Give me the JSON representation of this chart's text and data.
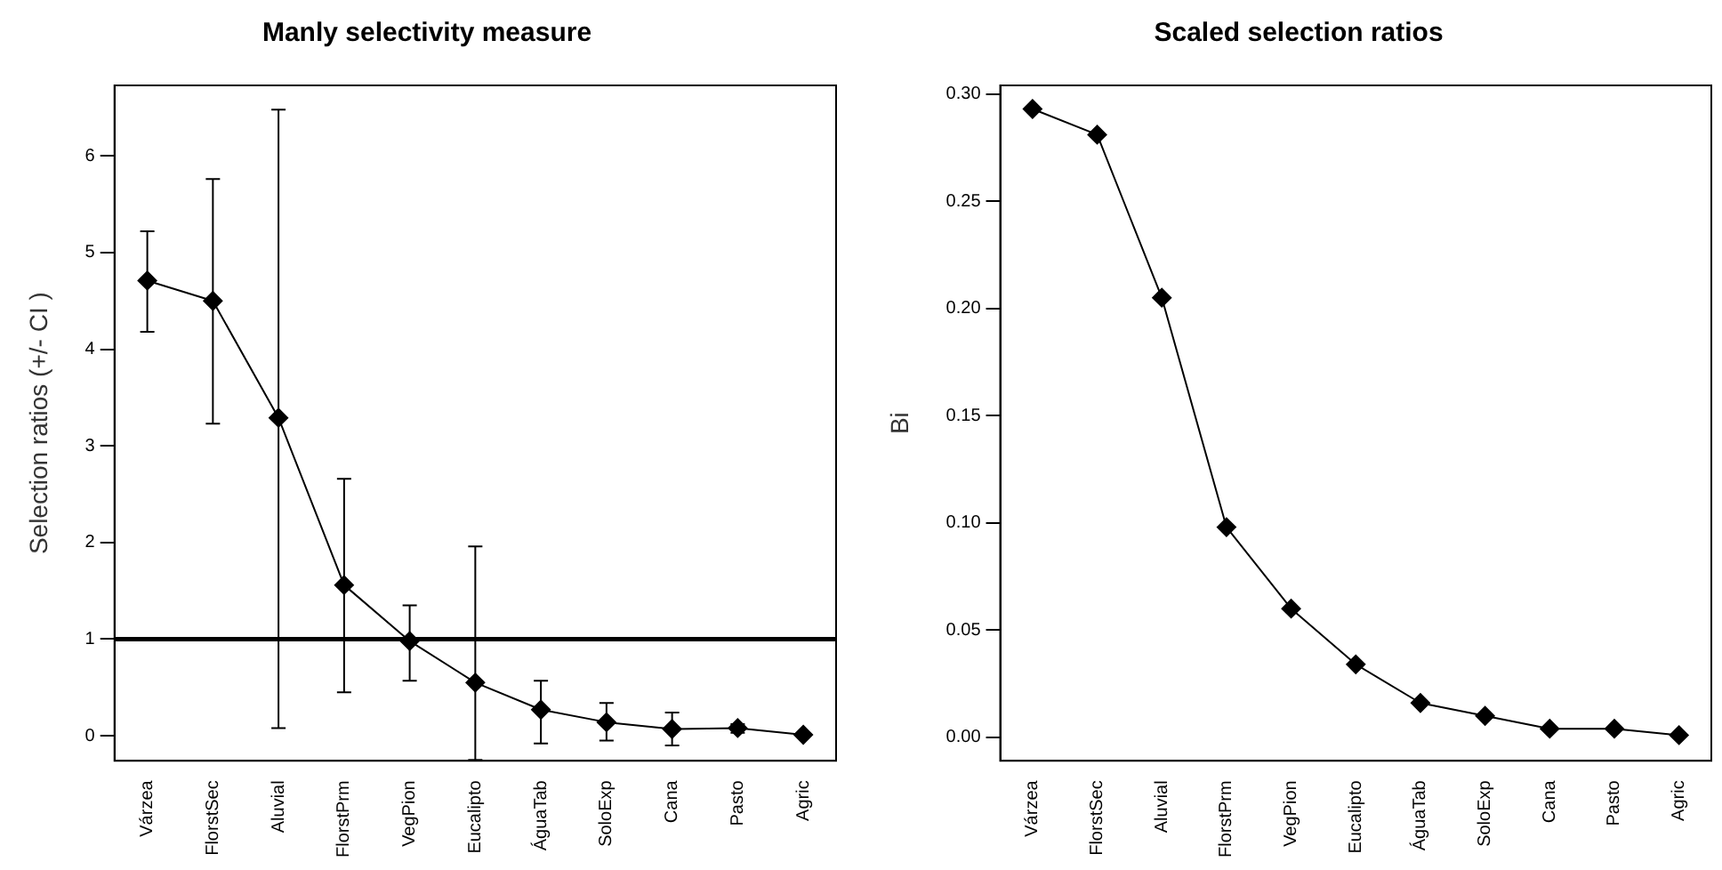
{
  "chart_data": [
    {
      "type": "line",
      "title": "Manly selectivity measure",
      "ylabel": "Selection ratios (+/- CI )",
      "categories": [
        "Várzea",
        "FlorstSec",
        "Aluvial",
        "FlorstPrm",
        "VegPion",
        "Eucalipto",
        "ÁguaTab",
        "SoloExp",
        "Cana",
        "Pasto",
        "Agric"
      ],
      "values": [
        4.71,
        4.5,
        3.29,
        1.56,
        0.98,
        0.55,
        0.27,
        0.14,
        0.07,
        0.08,
        0.01
      ],
      "errors": [
        [
          4.18,
          5.22
        ],
        [
          3.23,
          5.76
        ],
        [
          0.08,
          6.48
        ],
        [
          0.45,
          2.66
        ],
        [
          0.57,
          1.35
        ],
        [
          -0.25,
          1.96
        ],
        [
          -0.08,
          0.57
        ],
        [
          -0.05,
          0.34
        ],
        [
          -0.1,
          0.24
        ],
        [
          0.03,
          0.12
        ],
        null
      ],
      "color": "#000000",
      "marker": "diamond",
      "ylim": [
        -0.26,
        6.73
      ],
      "yticks": [
        0,
        1,
        2,
        3,
        4,
        5,
        6
      ],
      "ref_lines": [
        {
          "axis": "y",
          "value": 1,
          "color": "#000000"
        }
      ],
      "grid": false,
      "legend": false
    },
    {
      "type": "line",
      "title": "Scaled selection ratios",
      "ylabel": "Bi",
      "categories": [
        "Várzea",
        "FlorstSec",
        "Aluvial",
        "FlorstPrm",
        "VegPion",
        "Eucalipto",
        "ÁguaTab",
        "SoloExp",
        "Cana",
        "Pasto",
        "Agric"
      ],
      "values": [
        0.293,
        0.281,
        0.205,
        0.098,
        0.06,
        0.034,
        0.016,
        0.01,
        0.004,
        0.004,
        0.001
      ],
      "color": "#000000",
      "marker": "diamond",
      "ylim": [
        -0.011,
        0.304
      ],
      "yticks": [
        {
          "value": 0,
          "label": "0.00"
        },
        {
          "value": 0.05,
          "label": "0.05"
        },
        {
          "value": 0.1,
          "label": "0.10"
        },
        {
          "value": 0.15,
          "label": "0.15"
        },
        {
          "value": 0.2,
          "label": "0.20"
        },
        {
          "value": 0.25,
          "label": "0.25"
        },
        {
          "value": 0.3,
          "label": "0.30"
        }
      ],
      "grid": false,
      "legend": false
    }
  ]
}
